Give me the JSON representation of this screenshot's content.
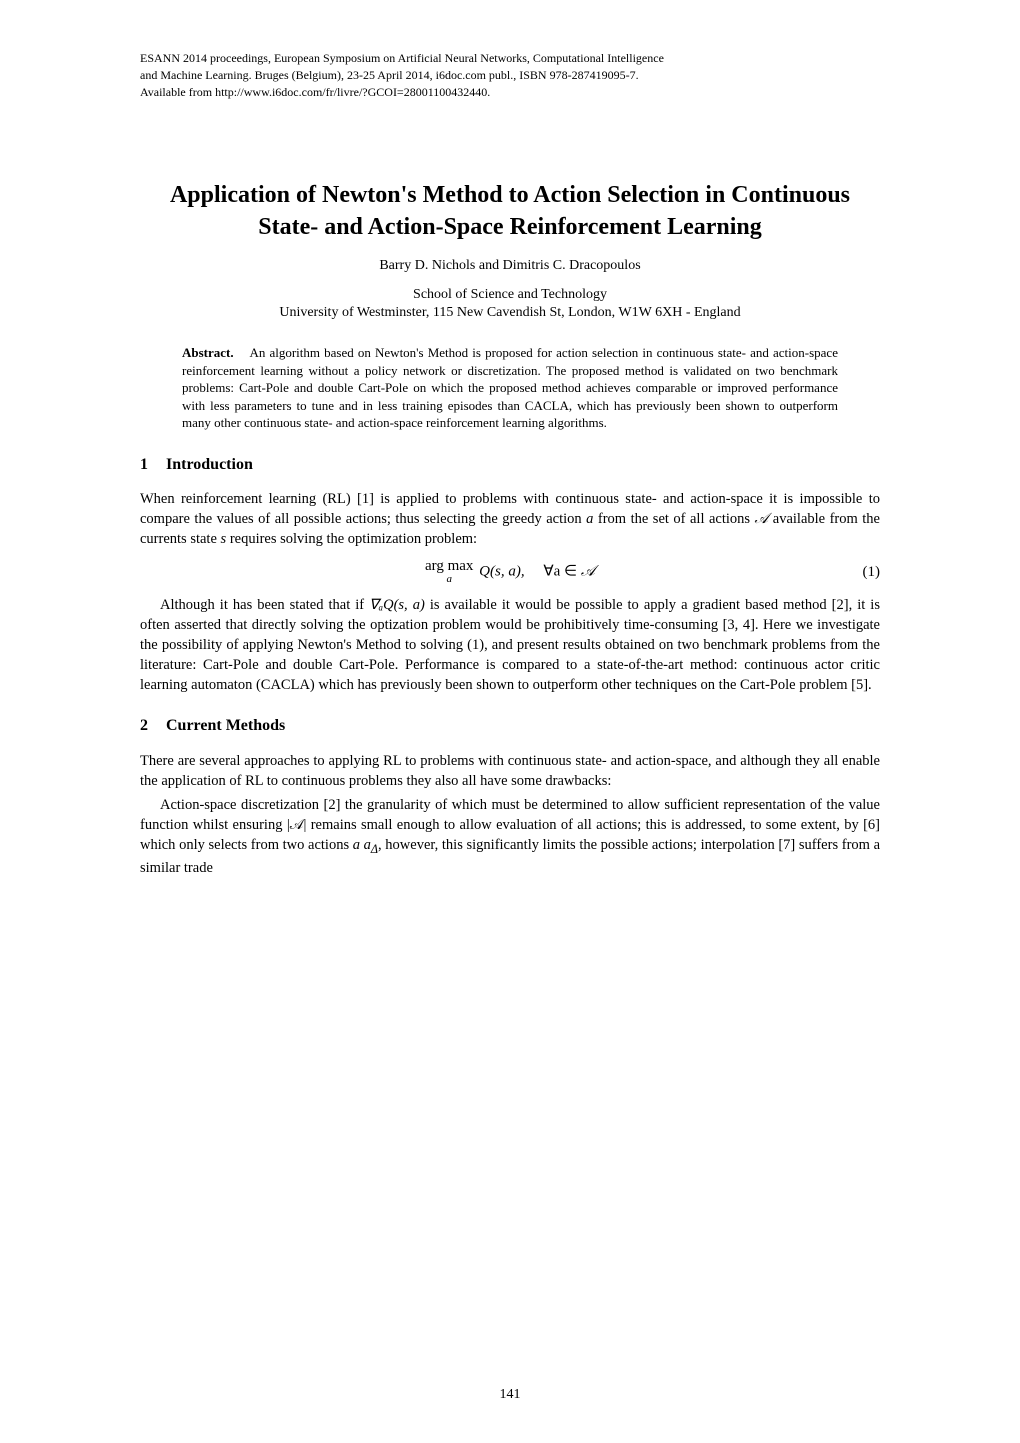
{
  "header": {
    "line1": "ESANN 2014 proceedings, European Symposium on Artificial Neural Networks, Computational Intelligence",
    "line2": "and Machine Learning. Bruges (Belgium), 23-25 April 2014, i6doc.com publ., ISBN 978-287419095-7.",
    "line3": "Available from http://www.i6doc.com/fr/livre/?GCOI=28001100432440."
  },
  "title": "Application of Newton's Method to Action Selection in Continuous State- and Action-Space Reinforcement Learning",
  "authors": "Barry D. Nichols and Dimitris C. Dracopoulos",
  "affiliation": {
    "line1": "School of Science and Technology",
    "line2": "University of Westminster, 115 New Cavendish St, London, W1W 6XH - England"
  },
  "abstract": {
    "label": "Abstract.",
    "body": "An algorithm based on Newton's Method is proposed for action selection in continuous state- and action-space reinforcement learning without a policy network or discretization. The proposed method is validated on two benchmark problems: Cart-Pole and double Cart-Pole on which the proposed method achieves comparable or improved performance with less parameters to tune and in less training episodes than CACLA, which has previously been shown to outperform many other continuous state- and action-space reinforcement learning algorithms."
  },
  "section1": {
    "number": "1",
    "title": "Introduction",
    "p1_a": "When reinforcement learning (RL) [1] is applied to problems with continuous state- and action-space it is impossible to compare the values of all possible actions; thus selecting the greedy action ",
    "p1_b": " from the set of all actions ",
    "p1_c": " available from the currents state ",
    "p1_d": " requires solving the optimization problem:",
    "p2_a": "Although it has been stated that if ",
    "p2_b": " is available it would be possible to apply a gradient based method [2], it is often asserted that directly solving the optization problem would be prohibitively time-consuming [3, 4]. Here we investigate the possibility of applying Newton's Method to solving (1), and present results obtained on two benchmark problems from the literature: Cart-Pole and double Cart-Pole. Performance is compared to a state-of-the-art method: continuous actor critic learning automaton (CACLA) which has previously been shown to outperform other techniques on the Cart-Pole problem [5]."
  },
  "equation1": {
    "argmax": "arg max",
    "sub": "a",
    "body_a": "Q(s, a),",
    "forall": "∀a ∈ ",
    "number": "(1)"
  },
  "section2": {
    "number": "2",
    "title": "Current Methods",
    "p1": "There are several approaches to applying RL to problems with continuous state- and action-space, and although they all enable the application of RL to continuous problems they also all have some drawbacks:",
    "p2_a": "Action-space discretization [2] the granularity of which must be determined to allow sufficient representation of the value function whilst ensuring ",
    "p2_b": " remains small enough to allow evaluation of all actions; this is addressed, to some extent, by [6] which only selects from two actions ",
    "p2_c": ", however, this significantly limits the possible actions; interpolation [7] suffers from a similar trade"
  },
  "symbols": {
    "a_ital": "a",
    "s_ital": "s",
    "A_cal": "𝒜",
    "A_abs": "|𝒜|",
    "grad": "∇ₐQ(s, a)",
    "a_delta": "a    a",
    "delta_sub": "Δ"
  },
  "page_number": "141",
  "style": {
    "body_bg": "#ffffff",
    "text_color": "#000000",
    "title_fontsize": 24,
    "title_weight": "bold",
    "section_fontsize": 16,
    "body_fontsize": 14.5,
    "abstract_fontsize": 13,
    "header_fontsize": 12,
    "font_family": "Times New Roman, serif"
  }
}
